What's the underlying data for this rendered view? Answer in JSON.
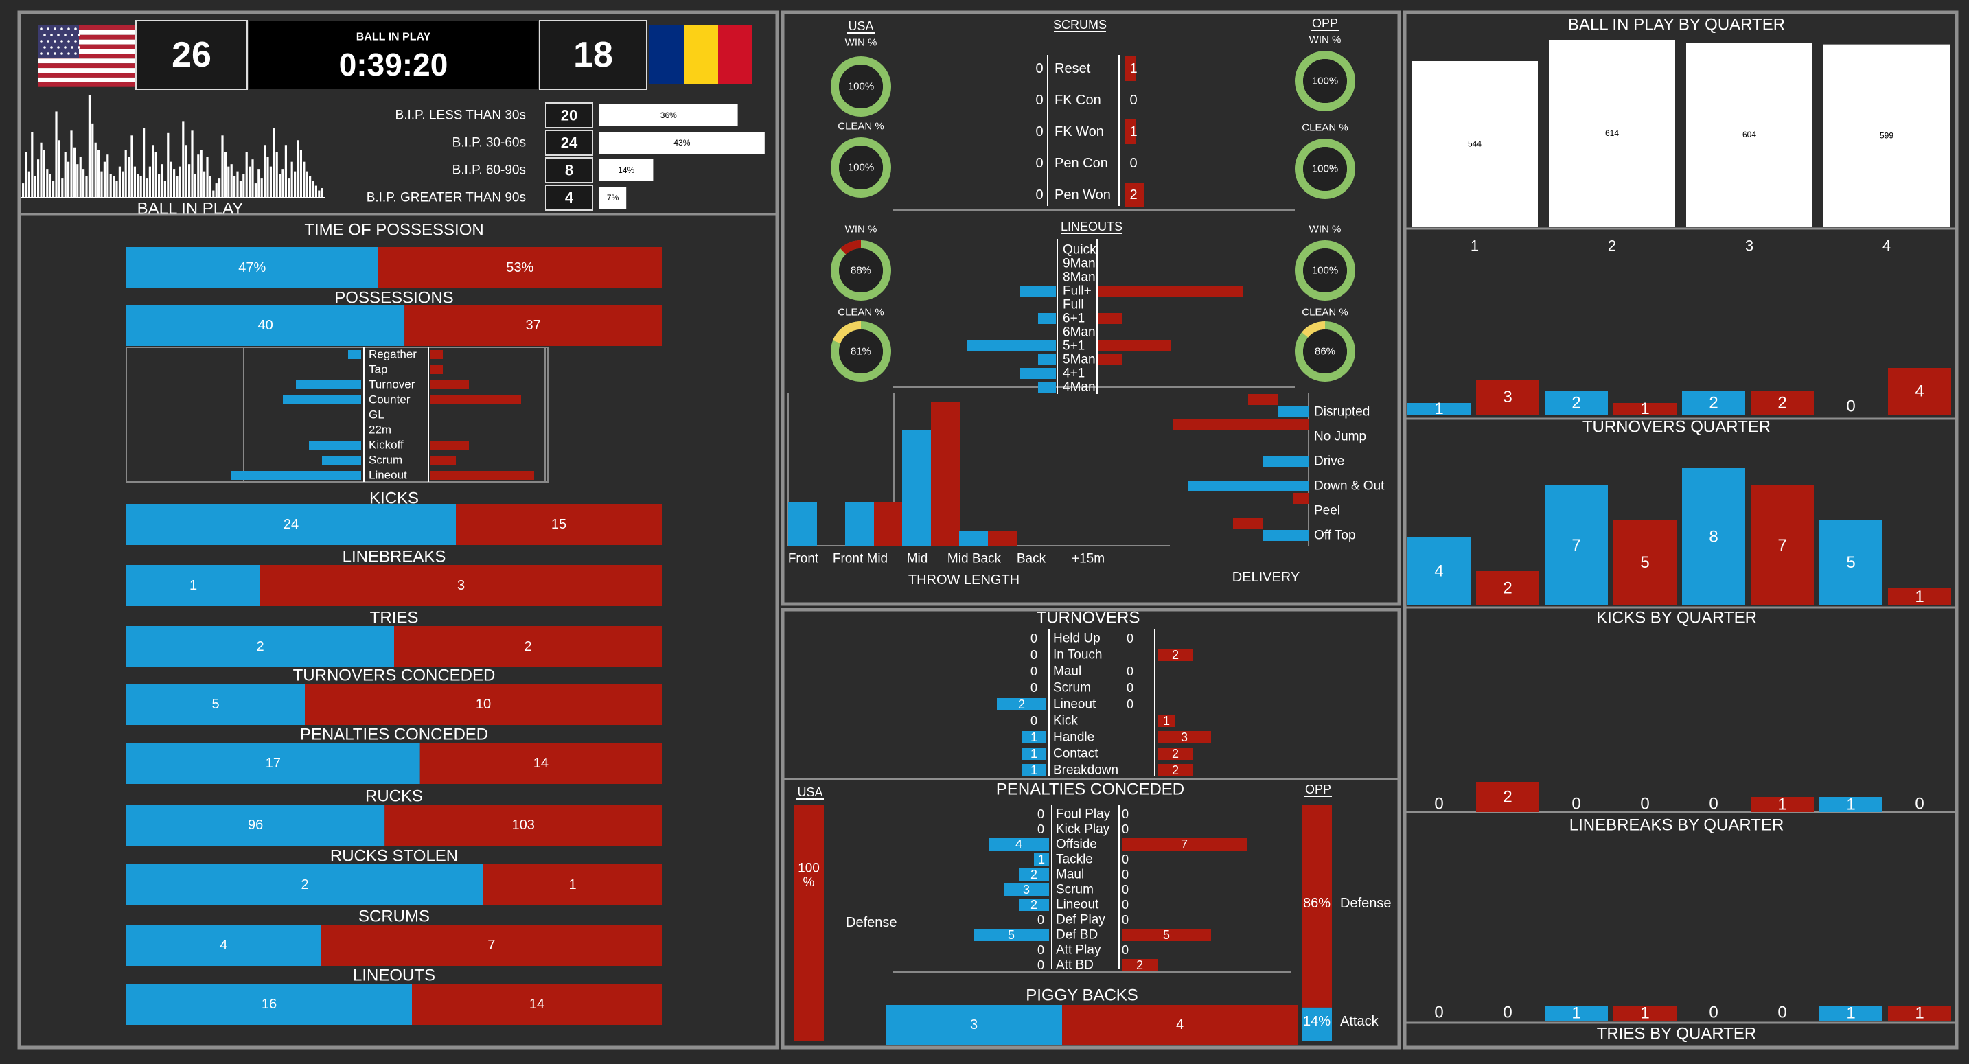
{
  "colors": {
    "usa": "#1a9bd7",
    "opp": "#ad1a0e",
    "bg": "#2a2a2a",
    "panel": "#2c2c2c",
    "border": "#8f8f8f",
    "ring": "#8cc266",
    "ring_yellow": "#f2d45f"
  },
  "icons": {
    "usa_flag": "us-flag-icon",
    "opp_flag": "romania-flag-icon"
  },
  "scoreboard": {
    "usa_score": "26",
    "opp_score": "18",
    "clock_label": "BALL IN PLAY",
    "clock": "0:39:20"
  },
  "bip": {
    "title": "BALL IN PLAY",
    "spark": [
      12,
      38,
      22,
      55,
      18,
      32,
      46,
      40,
      24,
      20,
      14,
      72,
      48,
      16,
      38,
      30,
      56,
      42,
      28,
      34,
      24,
      18,
      86,
      62,
      46,
      40,
      22,
      30,
      36,
      20,
      18,
      14,
      26,
      22,
      40,
      34,
      52,
      26,
      20,
      18,
      58,
      16,
      26,
      44,
      38,
      20,
      28,
      14,
      54,
      30,
      24,
      18,
      26,
      64,
      44,
      28,
      56,
      20,
      36,
      40,
      22,
      34,
      18,
      6,
      12,
      16,
      52,
      38,
      26,
      28,
      18,
      22,
      14,
      20,
      38,
      26,
      32,
      12,
      24,
      16,
      44,
      34,
      26,
      58,
      38,
      20,
      24,
      44,
      16,
      30,
      22,
      48,
      40,
      30,
      22,
      18,
      14,
      10,
      6,
      8
    ],
    "rows": [
      {
        "label": "B.I.P. LESS THAN 30s",
        "count": "20",
        "pct": 36,
        "pct_label": "36%"
      },
      {
        "label": "B.I.P. 30-60s",
        "count": "24",
        "pct": 43,
        "pct_label": "43%"
      },
      {
        "label": "B.I.P. 60-90s",
        "count": "8",
        "pct": 14,
        "pct_label": "14%"
      },
      {
        "label": "B.I.P. GREATER THAN 90s",
        "count": "4",
        "pct": 7,
        "pct_label": "7%"
      }
    ]
  },
  "stats": [
    {
      "id": "time-of-possession",
      "title": "TIME OF POSSESSION",
      "usa": 47,
      "opp": 53,
      "usa_label": "47%",
      "opp_label": "53%"
    },
    {
      "id": "possessions",
      "title": "POSSESSIONS",
      "usa": 40,
      "opp": 37,
      "usa_label": "40",
      "opp_label": "37"
    },
    {
      "id": "kicks",
      "title": "KICKS",
      "usa": 24,
      "opp": 15,
      "usa_label": "24",
      "opp_label": "15"
    },
    {
      "id": "linebreaks",
      "title": "LINEBREAKS",
      "usa": 1,
      "opp": 3,
      "usa_label": "1",
      "opp_label": "3"
    },
    {
      "id": "tries",
      "title": "TRIES",
      "usa": 2,
      "opp": 2,
      "usa_label": "2",
      "opp_label": "2"
    },
    {
      "id": "turnovers-conceded",
      "title": "TURNOVERS CONCEDED",
      "usa": 5,
      "opp": 10,
      "usa_label": "5",
      "opp_label": "10"
    },
    {
      "id": "penalties-conceded",
      "title": "PENALTIES CONCEDED",
      "usa": 17,
      "opp": 14,
      "usa_label": "17",
      "opp_label": "14"
    },
    {
      "id": "rucks",
      "title": "RUCKS",
      "usa": 96,
      "opp": 103,
      "usa_label": "96",
      "opp_label": "103"
    },
    {
      "id": "rucks-stolen",
      "title": "RUCKS STOLEN",
      "usa": 2,
      "opp": 1,
      "usa_label": "2",
      "opp_label": "1"
    },
    {
      "id": "scrums",
      "title": "SCRUMS",
      "usa": 4,
      "opp": 7,
      "usa_label": "4",
      "opp_label": "7"
    },
    {
      "id": "lineouts",
      "title": "LINEOUTS",
      "usa": 16,
      "opp": 14,
      "usa_label": "16",
      "opp_label": "14"
    }
  ],
  "possession_sources": [
    {
      "label": "Regather",
      "usa": 1,
      "opp": 1
    },
    {
      "label": "Tap",
      "usa": 0,
      "opp": 1
    },
    {
      "label": "Turnover",
      "usa": 5,
      "opp": 3
    },
    {
      "label": "Counter",
      "usa": 6,
      "opp": 7
    },
    {
      "label": "GL",
      "usa": 0,
      "opp": 0
    },
    {
      "label": "22m",
      "usa": 0,
      "opp": 0
    },
    {
      "label": "Kickoff",
      "usa": 4,
      "opp": 3
    },
    {
      "label": "Scrum",
      "usa": 3,
      "opp": 2
    },
    {
      "label": "Lineout",
      "usa": 10,
      "opp": 8
    }
  ],
  "setpiece": {
    "usa_label": "USA",
    "opp_label": "OPP",
    "scrums_title": "SCRUMS",
    "lineouts_title": "LINEOUTS",
    "win_label": "WIN %",
    "clean_label": "CLEAN %",
    "usa_scrum_win": {
      "value": 100,
      "label": "100%"
    },
    "usa_scrum_clean": {
      "value": 100,
      "label": "100%"
    },
    "opp_scrum_win": {
      "value": 100,
      "label": "100%"
    },
    "opp_scrum_clean": {
      "value": 100,
      "label": "100%"
    },
    "usa_lineout_win": {
      "value": 88,
      "label": "88%"
    },
    "usa_lineout_clean": {
      "value": 81,
      "label": "81%"
    },
    "opp_lineout_win": {
      "value": 100,
      "label": "100%"
    },
    "opp_lineout_clean": {
      "value": 86,
      "label": "86%"
    },
    "scrum_rows": [
      {
        "label": "Reset",
        "usa": "0",
        "opp": "1"
      },
      {
        "label": "FK Con",
        "usa": "0",
        "opp": "0"
      },
      {
        "label": "FK Won",
        "usa": "0",
        "opp": "1"
      },
      {
        "label": "Pen Con",
        "usa": "0",
        "opp": "0"
      },
      {
        "label": "Pen Won",
        "usa": "0",
        "opp": "2"
      }
    ],
    "lineout_types": [
      {
        "label": "Quick",
        "usa": 0,
        "opp": 0
      },
      {
        "label": "9Man",
        "usa": 0,
        "opp": 0
      },
      {
        "label": "8Man",
        "usa": 0,
        "opp": 0
      },
      {
        "label": "Full+",
        "usa": 2,
        "opp": 6
      },
      {
        "label": "Full",
        "usa": 0,
        "opp": 0
      },
      {
        "label": "6+1",
        "usa": 1,
        "opp": 1
      },
      {
        "label": "6Man",
        "usa": 0,
        "opp": 0
      },
      {
        "label": "5+1",
        "usa": 5,
        "opp": 3
      },
      {
        "label": "5Man",
        "usa": 1,
        "opp": 1
      },
      {
        "label": "4+1",
        "usa": 2,
        "opp": 0
      },
      {
        "label": "4Man",
        "usa": 1,
        "opp": 0
      }
    ],
    "throw_title": "THROW LENGTH",
    "throw_lengths": [
      {
        "label": "Front",
        "usa": 3,
        "opp": 0
      },
      {
        "label": "Front Mid",
        "usa": 3,
        "opp": 3
      },
      {
        "label": "Mid",
        "usa": 8,
        "opp": 10
      },
      {
        "label": "Mid Back",
        "usa": 1,
        "opp": 1
      },
      {
        "label": "Back",
        "usa": 0,
        "opp": 0
      },
      {
        "label": "+15m",
        "usa": 0,
        "opp": 0
      }
    ],
    "delivery_title": "DELIVERY",
    "deliveries": [
      {
        "label": "Disrupted",
        "usa": 2,
        "opp": 2
      },
      {
        "label": "No Jump",
        "usa": 0,
        "opp": 9
      },
      {
        "label": "Drive",
        "usa": 3,
        "opp": 0
      },
      {
        "label": "Down & Out",
        "usa": 8,
        "opp": 0
      },
      {
        "label": "Peel",
        "usa": 0,
        "opp": 1
      },
      {
        "label": "Off Top",
        "usa": 3,
        "opp": 2
      }
    ]
  },
  "turnovers": {
    "title": "TURNOVERS",
    "rows": [
      {
        "label": "Held Up",
        "usa": "0",
        "opp": "0"
      },
      {
        "label": "In Touch",
        "usa": "0",
        "opp": "2"
      },
      {
        "label": "Maul",
        "usa": "0",
        "opp": "0"
      },
      {
        "label": "Scrum",
        "usa": "0",
        "opp": "0"
      },
      {
        "label": "Lineout",
        "usa": "2",
        "opp": "0"
      },
      {
        "label": "Kick",
        "usa": "0",
        "opp": "1"
      },
      {
        "label": "Handle",
        "usa": "1",
        "opp": "3"
      },
      {
        "label": "Contact",
        "usa": "1",
        "opp": "2"
      },
      {
        "label": "Breakdown",
        "usa": "1",
        "opp": "2"
      }
    ]
  },
  "penalties": {
    "title": "PENALTIES CONCEDED",
    "usa_label": "USA",
    "opp_label": "OPP",
    "rows": [
      {
        "label": "Foul Play",
        "usa": "0",
        "opp": "0"
      },
      {
        "label": "Kick Play",
        "usa": "0",
        "opp": "0"
      },
      {
        "label": "Offside",
        "usa": "4",
        "opp": "7"
      },
      {
        "label": "Tackle",
        "usa": "1",
        "opp": "0"
      },
      {
        "label": "Maul",
        "usa": "2",
        "opp": "0"
      },
      {
        "label": "Scrum",
        "usa": "3",
        "opp": "0"
      },
      {
        "label": "Lineout",
        "usa": "2",
        "opp": "0"
      },
      {
        "label": "Def Play",
        "usa": "0",
        "opp": "0"
      },
      {
        "label": "Def BD",
        "usa": "5",
        "opp": "5"
      },
      {
        "label": "Att Play",
        "usa": "0",
        "opp": "0"
      },
      {
        "label": "Att BD",
        "usa": "0",
        "opp": "2"
      }
    ],
    "usa_defense_pct": 100,
    "usa_defense_label": "100\n%",
    "usa_attack_pct": 0,
    "opp_defense_pct": 86,
    "opp_defense_label": "86%",
    "opp_attack_pct": 14,
    "opp_attack_label": "14%",
    "defense_label": "Defense",
    "attack_label": "Attack"
  },
  "piggy": {
    "title": "PIGGY BACKS",
    "usa": 3,
    "opp": 4,
    "usa_label": "3",
    "opp_label": "4"
  },
  "quarters": {
    "bip_title": "BALL IN PLAY BY QUARTER",
    "bip": [
      {
        "q": "1",
        "value": 544,
        "label": "544"
      },
      {
        "q": "2",
        "value": 614,
        "label": "614"
      },
      {
        "q": "3",
        "value": 604,
        "label": "604"
      },
      {
        "q": "4",
        "value": 599,
        "label": "599"
      }
    ],
    "turnovers_title": "TURNOVERS QUARTER",
    "turnovers": [
      [
        1,
        3
      ],
      [
        2,
        1
      ],
      [
        2,
        2
      ],
      [
        0,
        4
      ]
    ],
    "kicks_title": "KICKS BY QUARTER",
    "kicks": [
      [
        4,
        2
      ],
      [
        7,
        5
      ],
      [
        8,
        7
      ],
      [
        5,
        1
      ]
    ],
    "linebreaks_title": "LINEBREAKS BY QUARTER",
    "linebreaks": [
      [
        0,
        2
      ],
      [
        0,
        0
      ],
      [
        0,
        1
      ],
      [
        1,
        0
      ]
    ],
    "tries_title": "TRIES BY QUARTER",
    "tries": [
      [
        0,
        0
      ],
      [
        1,
        1
      ],
      [
        0,
        0
      ],
      [
        1,
        1
      ]
    ]
  }
}
